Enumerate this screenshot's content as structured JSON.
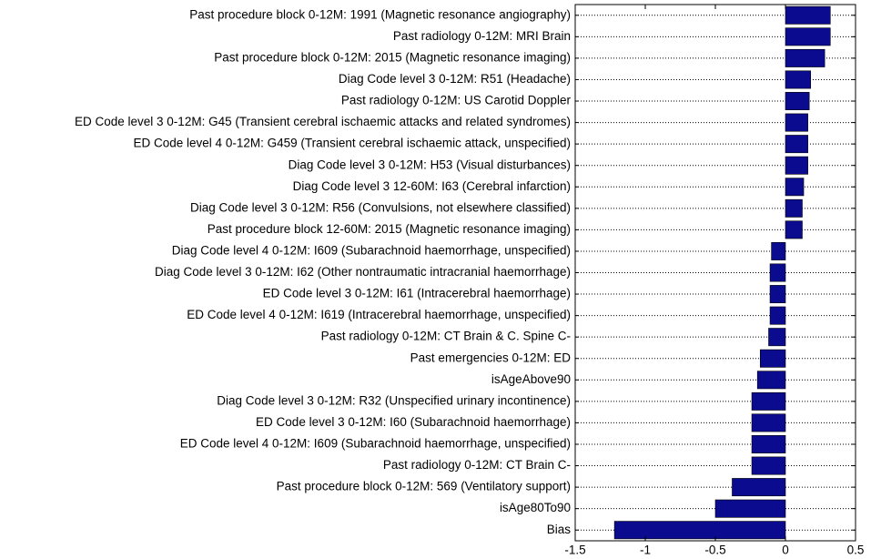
{
  "chart_data": {
    "type": "barh",
    "categories": [
      "Past procedure block 0-12M: 1991 (Magnetic resonance angiography)",
      "Past radiology 0-12M: MRI Brain",
      "Past procedure block 0-12M: 2015 (Magnetic resonance imaging)",
      "Diag Code level 3 0-12M: R51 (Headache)",
      "Past radiology 0-12M: US Carotid Doppler",
      "ED Code level 3 0-12M: G45 (Transient cerebral ischaemic attacks and related syndromes)",
      "ED Code level 4 0-12M: G459 (Transient cerebral ischaemic attack, unspecified)",
      "Diag Code level 3 0-12M: H53 (Visual disturbances)",
      "Diag Code level 3 12-60M: I63 (Cerebral infarction)",
      "Diag Code level 3 0-12M: R56 (Convulsions, not elsewhere classified)",
      "Past procedure block 12-60M: 2015 (Magnetic resonance imaging)",
      "Diag Code level 4 0-12M: I609 (Subarachnoid haemorrhage, unspecified)",
      "Diag Code level 3 0-12M: I62 (Other nontraumatic intracranial haemorrhage)",
      "ED Code level 3 0-12M: I61 (Intracerebral haemorrhage)",
      "ED Code level 4 0-12M: I619 (Intracerebral haemorrhage, unspecified)",
      "Past radiology 0-12M: CT Brain & C. Spine C-",
      "Past emergencies 0-12M: ED",
      "isAgeAbove90",
      "Diag Code level 3 0-12M: R32 (Unspecified urinary incontinence)",
      "ED Code level 3 0-12M: I60 (Subarachnoid haemorrhage)",
      "ED Code level 4 0-12M: I609 (Subarachnoid haemorrhage, unspecified)",
      "Past radiology 0-12M: CT Brain C-",
      "Past procedure block 0-12M: 569 (Ventilatory support)",
      "isAge80To90",
      "Bias"
    ],
    "values": [
      0.32,
      0.32,
      0.28,
      0.18,
      0.17,
      0.16,
      0.16,
      0.16,
      0.13,
      0.12,
      0.12,
      -0.1,
      -0.11,
      -0.11,
      -0.11,
      -0.12,
      -0.18,
      -0.2,
      -0.24,
      -0.24,
      -0.24,
      -0.24,
      -0.38,
      -0.5,
      -1.22
    ],
    "color": "#0b0b8f",
    "xlim": [
      -1.5,
      0.5
    ],
    "xticks": [
      -1.5,
      -1,
      -0.5,
      0,
      0.5
    ],
    "grid": true
  }
}
